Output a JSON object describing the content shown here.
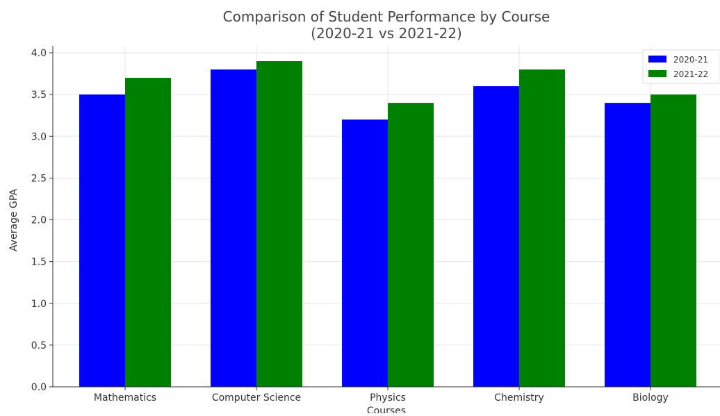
{
  "chart_data": {
    "type": "bar",
    "title": [
      "Comparison of Student Performance by Course",
      "(2020-21 vs 2021-22)"
    ],
    "xlabel": "Courses",
    "ylabel": "Average GPA",
    "categories": [
      "Mathematics",
      "Computer Science",
      "Physics",
      "Chemistry",
      "Biology"
    ],
    "series": [
      {
        "name": "2020-21",
        "values": [
          3.5,
          3.8,
          3.2,
          3.6,
          3.4
        ],
        "color": "#0000ff"
      },
      {
        "name": "2021-22",
        "values": [
          3.7,
          3.9,
          3.4,
          3.8,
          3.5
        ],
        "color": "#008000"
      }
    ],
    "ylim": [
      0,
      4.0
    ],
    "yticks": [
      "0.0",
      "0.5",
      "1.0",
      "1.5",
      "2.0",
      "2.5",
      "3.0",
      "3.5",
      "4.0"
    ],
    "grid": true,
    "legend": "top-right"
  }
}
